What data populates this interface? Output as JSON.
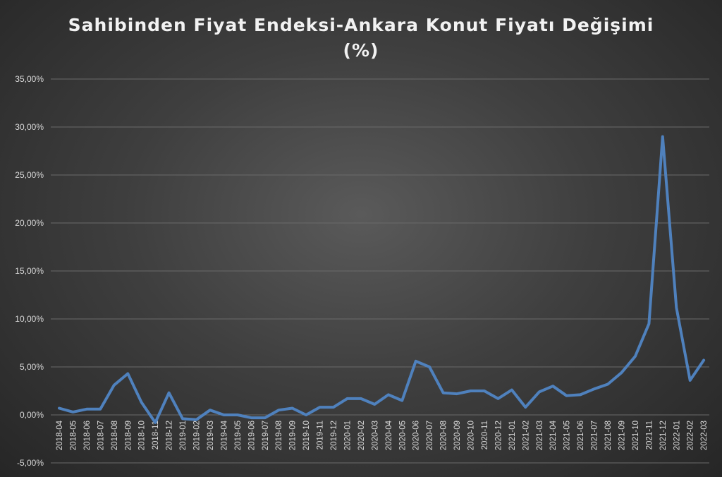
{
  "chart_data": {
    "type": "line",
    "title_line1": "Sahibinden Fiyat Endeksi-Ankara Konut Fiyatı Değişimi",
    "title_line2": "(%)",
    "xlabel": "",
    "ylabel": "",
    "ylim": [
      -5,
      35
    ],
    "yticks": [
      -5,
      0,
      5,
      10,
      15,
      20,
      25,
      30,
      35
    ],
    "ytick_labels": [
      "-5,00%",
      "0,00%",
      "5,00%",
      "10,00%",
      "15,00%",
      "20,00%",
      "25,00%",
      "30,00%",
      "35,00%"
    ],
    "grid": true,
    "series_color": "#4f81bd",
    "categories": [
      "2018-04",
      "2018-05",
      "2018-06",
      "2018-07",
      "2018-08",
      "2018-09",
      "2018-10",
      "2018-11",
      "2018-12",
      "2019-01",
      "2019-02",
      "2019-03",
      "2019-04",
      "2019-05",
      "2019-06",
      "2019-07",
      "2019-08",
      "2019-09",
      "2019-10",
      "2019-11",
      "2019-12",
      "2020-01",
      "2020-02",
      "2020-03",
      "2020-04",
      "2020-05",
      "2020-06",
      "2020-07",
      "2020-08",
      "2020-09",
      "2020-10",
      "2020-11",
      "2020-12",
      "2021-01",
      "2021-02",
      "2021-03",
      "2021-04",
      "2021-05",
      "2021-06",
      "2021-07",
      "2021-08",
      "2021-09",
      "2021-10",
      "2021-11",
      "2021-12",
      "2022-01",
      "2022-02",
      "2022-03"
    ],
    "values": [
      0.7,
      0.3,
      0.6,
      0.6,
      3.1,
      4.3,
      1.3,
      -0.8,
      2.3,
      -0.4,
      -0.5,
      0.5,
      0.0,
      0.0,
      -0.3,
      -0.3,
      0.5,
      0.7,
      0.0,
      0.8,
      0.8,
      1.7,
      1.7,
      1.1,
      2.1,
      1.5,
      5.6,
      5.0,
      2.3,
      2.2,
      2.5,
      2.5,
      1.7,
      2.6,
      0.8,
      2.4,
      3.0,
      2.0,
      2.1,
      2.7,
      3.2,
      4.4,
      6.1,
      9.5,
      29.0,
      11.2,
      3.6,
      5.7
    ]
  }
}
